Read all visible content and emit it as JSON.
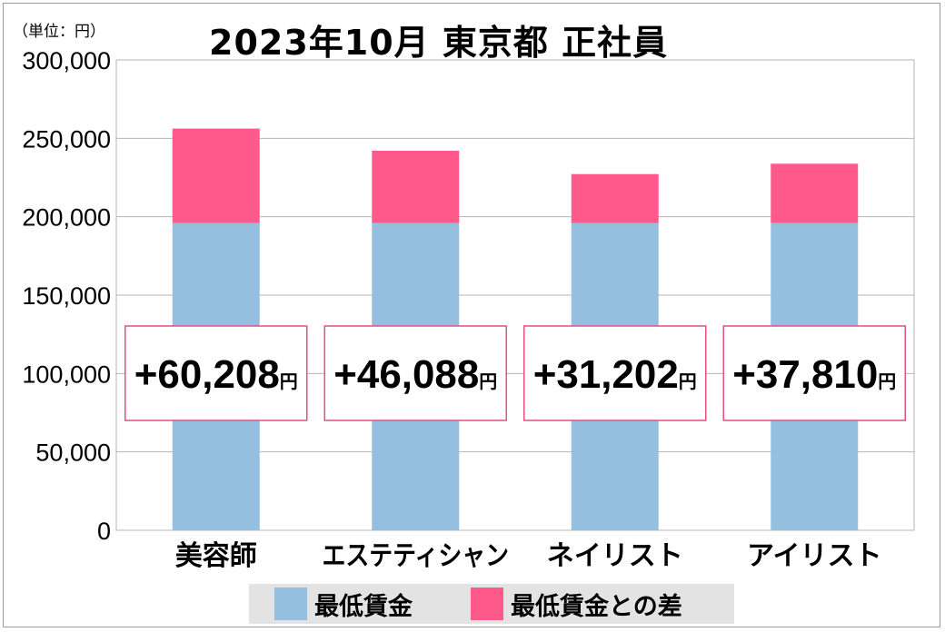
{
  "unit_label": "（単位：円）",
  "title": "2023年10月 東京都 正社員",
  "chart_data": {
    "type": "bar",
    "stacked": true,
    "title": "2023年10月 東京都 正社員",
    "unit": "（単位：円）",
    "categories": [
      "美容師",
      "エステティシャン",
      "ネイリスト",
      "アイリスト"
    ],
    "series": [
      {
        "name": "最低賃金",
        "color": "#95bfde",
        "values": [
          196000,
          196000,
          196000,
          196000
        ]
      },
      {
        "name": "最低賃金との差",
        "color": "#ff5a8c",
        "values": [
          60208,
          46088,
          31202,
          37810
        ]
      }
    ],
    "difference_labels": [
      "+60,208",
      "+46,088",
      "+31,202",
      "+37,810"
    ],
    "difference_unit": "円",
    "ylim": [
      0,
      300000
    ],
    "yticks": [
      0,
      50000,
      100000,
      150000,
      200000,
      250000,
      300000
    ],
    "ytick_labels": [
      "0",
      "50,000",
      "100,000",
      "150,000",
      "200,000",
      "250,000",
      "300,000"
    ],
    "grid": true,
    "legend_position": "bottom"
  }
}
